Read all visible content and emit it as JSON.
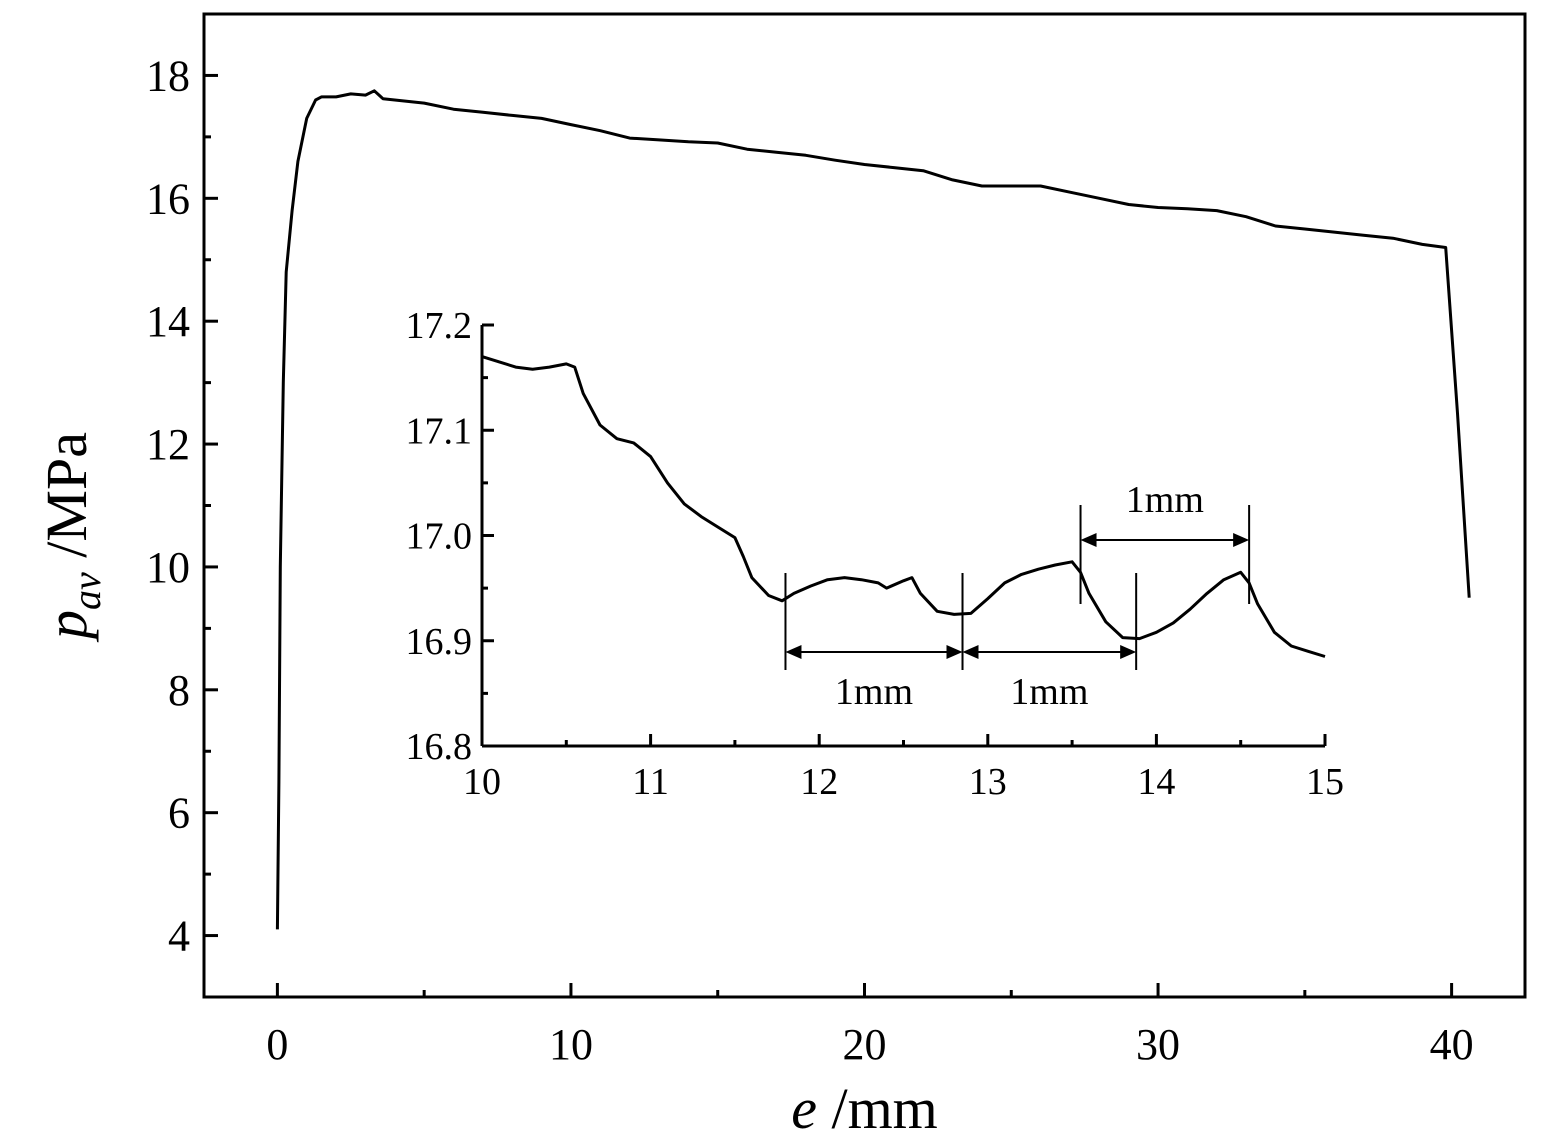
{
  "chart_data": [
    {
      "type": "line",
      "name": "main",
      "xlabel_var": "e",
      "xlabel_unit": " /mm",
      "ylabel_var": "p",
      "ylabel_sub": "av",
      "ylabel_unit": " /MPa",
      "xlim": [
        -2.5,
        42.5
      ],
      "ylim": [
        3,
        19
      ],
      "xticks": [
        0,
        10,
        20,
        30,
        40
      ],
      "xtick_labels": [
        "0",
        "10",
        "20",
        "30",
        "40"
      ],
      "yticks": [
        4,
        6,
        8,
        10,
        12,
        14,
        16,
        18
      ],
      "ytick_labels": [
        "4",
        "6",
        "8",
        "10",
        "12",
        "14",
        "16",
        "18"
      ],
      "series": [
        {
          "name": "p_av",
          "x": [
            0.0,
            0.05,
            0.1,
            0.2,
            0.3,
            0.5,
            0.7,
            1.0,
            1.3,
            1.5,
            2.0,
            2.5,
            3.0,
            3.3,
            3.6,
            4.0,
            5.0,
            6.0,
            7.0,
            8.0,
            9.0,
            10.0,
            11.0,
            12.0,
            13.0,
            14.0,
            15.0,
            16.0,
            17.0,
            18.0,
            19.0,
            20.0,
            21.0,
            22.0,
            23.0,
            24.0,
            25.0,
            26.0,
            27.0,
            28.0,
            29.0,
            30.0,
            31.0,
            32.0,
            33.0,
            34.0,
            35.0,
            36.0,
            37.0,
            38.0,
            39.0,
            39.8,
            40.2,
            40.6
          ],
          "y": [
            4.1,
            6.5,
            10.0,
            13.0,
            14.8,
            15.8,
            16.6,
            17.3,
            17.6,
            17.65,
            17.65,
            17.7,
            17.68,
            17.75,
            17.62,
            17.6,
            17.55,
            17.45,
            17.4,
            17.35,
            17.3,
            17.2,
            17.1,
            16.98,
            16.95,
            16.92,
            16.9,
            16.8,
            16.75,
            16.7,
            16.62,
            16.55,
            16.5,
            16.45,
            16.3,
            16.2,
            16.2,
            16.2,
            16.1,
            16.0,
            15.9,
            15.85,
            15.83,
            15.8,
            15.7,
            15.55,
            15.5,
            15.45,
            15.4,
            15.35,
            15.25,
            15.2,
            12.5,
            9.5
          ]
        }
      ]
    },
    {
      "type": "line",
      "name": "inset",
      "xlim": [
        10,
        15
      ],
      "ylim": [
        16.8,
        17.2
      ],
      "xticks": [
        10,
        11,
        12,
        13,
        14,
        15
      ],
      "xtick_labels": [
        "10",
        "11",
        "12",
        "13",
        "14",
        "15"
      ],
      "yticks": [
        16.8,
        16.9,
        17.0,
        17.1,
        17.2
      ],
      "ytick_labels": [
        "16.8",
        "16.9",
        "17.0",
        "17.1",
        "17.2"
      ],
      "series": [
        {
          "name": "p_av_zoom",
          "x": [
            10.0,
            10.1,
            10.2,
            10.3,
            10.4,
            10.5,
            10.55,
            10.6,
            10.7,
            10.8,
            10.9,
            11.0,
            11.1,
            11.2,
            11.3,
            11.4,
            11.5,
            11.55,
            11.6,
            11.7,
            11.78,
            11.85,
            11.95,
            12.05,
            12.15,
            12.25,
            12.35,
            12.4,
            12.5,
            12.55,
            12.6,
            12.7,
            12.8,
            12.9,
            13.0,
            13.1,
            13.2,
            13.3,
            13.4,
            13.5,
            13.55,
            13.6,
            13.7,
            13.8,
            13.9,
            14.0,
            14.1,
            14.2,
            14.3,
            14.4,
            14.5,
            14.55,
            14.6,
            14.7,
            14.8,
            14.9,
            15.0
          ],
          "y": [
            17.17,
            17.165,
            17.16,
            17.158,
            17.16,
            17.163,
            17.16,
            17.135,
            17.105,
            17.092,
            17.088,
            17.075,
            17.05,
            17.03,
            17.018,
            17.008,
            16.998,
            16.98,
            16.96,
            16.943,
            16.938,
            16.945,
            16.952,
            16.958,
            16.96,
            16.958,
            16.955,
            16.95,
            16.957,
            16.96,
            16.945,
            16.928,
            16.925,
            16.926,
            16.94,
            16.955,
            16.963,
            16.968,
            16.972,
            16.975,
            16.965,
            16.945,
            16.918,
            16.903,
            16.902,
            16.908,
            16.917,
            16.93,
            16.945,
            16.958,
            16.965,
            16.955,
            16.935,
            16.908,
            16.895,
            16.89,
            16.885
          ]
        }
      ],
      "annotations": [
        {
          "label": "1mm",
          "from": 11.8,
          "to": 12.85,
          "position": "below"
        },
        {
          "label": "1mm",
          "from": 12.85,
          "to": 13.88,
          "position": "below"
        },
        {
          "label": "1mm",
          "from": 13.55,
          "to": 14.55,
          "position": "above"
        }
      ]
    }
  ]
}
